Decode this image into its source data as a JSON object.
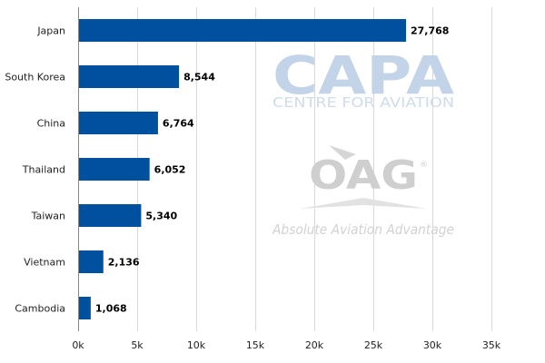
{
  "chart_data": {
    "type": "bar",
    "orientation": "horizontal",
    "title": "",
    "xlabel": "",
    "ylabel": "",
    "categories": [
      "Japan",
      "South Korea",
      "China",
      "Thailand",
      "Taiwan",
      "Vietnam",
      "Cambodia"
    ],
    "values": [
      27768,
      8544,
      6764,
      6052,
      5340,
      2136,
      1068
    ],
    "value_labels": [
      "27,768",
      "8,544",
      "6,764",
      "6,052",
      "5,340",
      "2,136",
      "1,068"
    ],
    "xlim": [
      0,
      35000
    ],
    "xticks": [
      0,
      5000,
      10000,
      15000,
      20000,
      25000,
      30000,
      35000
    ],
    "xtick_labels": [
      "0k",
      "5k",
      "10k",
      "15k",
      "20k",
      "25k",
      "30k",
      "35k"
    ],
    "grid": "vertical",
    "bar_color": "#0050a0",
    "legend": "none"
  },
  "watermarks": {
    "capa_logo": "CAPA",
    "capa_subtitle": "CENTRE FOR AVIATION",
    "oag_logo": "OAG",
    "oag_tagline": "Absolute Aviation Advantage"
  }
}
